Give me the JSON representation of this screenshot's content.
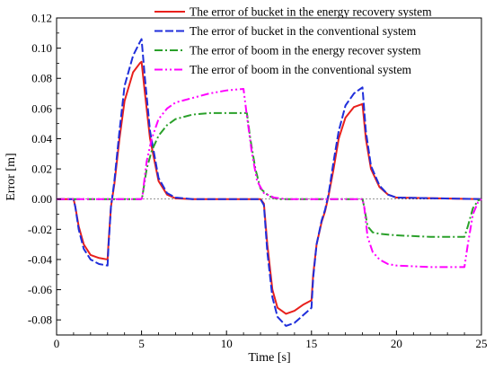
{
  "chart_data": {
    "type": "line",
    "xlabel": "Time [s]",
    "ylabel": "Error [m]",
    "xlim": [
      0,
      25
    ],
    "ylim": [
      -0.09,
      0.12
    ],
    "x_ticks": [
      "0",
      "5",
      "10",
      "15",
      "20",
      "25"
    ],
    "y_ticks": [
      "-0.08",
      "-0.06",
      "-0.04",
      "-0.02",
      "0.00",
      "0.02",
      "0.04",
      "0.06",
      "0.08",
      "0.10",
      "0.12"
    ],
    "grid": false,
    "legend_position": "top-right",
    "series": [
      {
        "name": "The error of bucket in the energy recovery system",
        "color": "#e8201c",
        "dash": "solid",
        "points": [
          [
            0,
            0
          ],
          [
            1.0,
            0
          ],
          [
            1.1,
            -0.005
          ],
          [
            1.3,
            -0.018
          ],
          [
            1.6,
            -0.03
          ],
          [
            2.0,
            -0.037
          ],
          [
            2.5,
            -0.039
          ],
          [
            3.0,
            -0.04
          ],
          [
            3.05,
            -0.03
          ],
          [
            3.2,
            -0.005
          ],
          [
            3.4,
            0.01
          ],
          [
            3.7,
            0.04
          ],
          [
            4.0,
            0.065
          ],
          [
            4.5,
            0.084
          ],
          [
            4.9,
            0.09
          ],
          [
            5.0,
            0.091
          ],
          [
            5.2,
            0.07
          ],
          [
            5.5,
            0.04
          ],
          [
            6.0,
            0.012
          ],
          [
            6.5,
            0.003
          ],
          [
            7.0,
            0.0005
          ],
          [
            8.0,
            0
          ],
          [
            12.0,
            0
          ],
          [
            12.2,
            -0.003
          ],
          [
            12.4,
            -0.03
          ],
          [
            12.7,
            -0.06
          ],
          [
            13.0,
            -0.072
          ],
          [
            13.5,
            -0.076
          ],
          [
            14.0,
            -0.074
          ],
          [
            14.5,
            -0.07
          ],
          [
            15.0,
            -0.067
          ],
          [
            15.1,
            -0.05
          ],
          [
            15.3,
            -0.03
          ],
          [
            15.6,
            -0.015
          ],
          [
            15.8,
            -0.008
          ],
          [
            16.0,
            0.002
          ],
          [
            16.3,
            0.02
          ],
          [
            16.6,
            0.04
          ],
          [
            17.0,
            0.054
          ],
          [
            17.5,
            0.061
          ],
          [
            18.0,
            0.063
          ],
          [
            18.2,
            0.04
          ],
          [
            18.5,
            0.02
          ],
          [
            19.0,
            0.008
          ],
          [
            19.5,
            0.003
          ],
          [
            20.0,
            0.001
          ],
          [
            25.0,
            0
          ]
        ]
      },
      {
        "name": "The error of bucket in the conventional system",
        "color": "#1f2edb",
        "dash": "dashed",
        "points": [
          [
            0,
            0
          ],
          [
            1.0,
            0
          ],
          [
            1.1,
            -0.005
          ],
          [
            1.3,
            -0.02
          ],
          [
            1.6,
            -0.033
          ],
          [
            2.0,
            -0.04
          ],
          [
            2.5,
            -0.043
          ],
          [
            3.0,
            -0.044
          ],
          [
            3.05,
            -0.032
          ],
          [
            3.2,
            -0.005
          ],
          [
            3.4,
            0.012
          ],
          [
            3.7,
            0.045
          ],
          [
            4.0,
            0.075
          ],
          [
            4.5,
            0.095
          ],
          [
            4.9,
            0.104
          ],
          [
            5.0,
            0.106
          ],
          [
            5.2,
            0.08
          ],
          [
            5.5,
            0.045
          ],
          [
            6.0,
            0.014
          ],
          [
            6.5,
            0.004
          ],
          [
            7.0,
            0.001
          ],
          [
            8.0,
            0
          ],
          [
            12.0,
            0
          ],
          [
            12.2,
            -0.004
          ],
          [
            12.4,
            -0.035
          ],
          [
            12.7,
            -0.065
          ],
          [
            13.0,
            -0.078
          ],
          [
            13.5,
            -0.084
          ],
          [
            14.0,
            -0.082
          ],
          [
            14.5,
            -0.077
          ],
          [
            15.0,
            -0.072
          ],
          [
            15.1,
            -0.052
          ],
          [
            15.3,
            -0.03
          ],
          [
            15.6,
            -0.014
          ],
          [
            15.8,
            -0.007
          ],
          [
            16.0,
            0.003
          ],
          [
            16.3,
            0.025
          ],
          [
            16.6,
            0.045
          ],
          [
            17.0,
            0.062
          ],
          [
            17.5,
            0.07
          ],
          [
            18.0,
            0.074
          ],
          [
            18.2,
            0.045
          ],
          [
            18.5,
            0.022
          ],
          [
            19.0,
            0.009
          ],
          [
            19.5,
            0.003
          ],
          [
            20.0,
            0.001
          ],
          [
            25.0,
            0
          ]
        ]
      },
      {
        "name": "The error of boom in the energy recover system",
        "color": "#2aa02a",
        "dash": "dashdot",
        "points": [
          [
            0,
            0
          ],
          [
            5.0,
            0
          ],
          [
            5.05,
            0.002
          ],
          [
            5.3,
            0.02
          ],
          [
            5.6,
            0.032
          ],
          [
            6.0,
            0.042
          ],
          [
            6.5,
            0.049
          ],
          [
            7.0,
            0.053
          ],
          [
            8.0,
            0.056
          ],
          [
            9.0,
            0.057
          ],
          [
            10.0,
            0.057
          ],
          [
            11.2,
            0.057
          ],
          [
            11.4,
            0.04
          ],
          [
            11.7,
            0.02
          ],
          [
            12.0,
            0.007
          ],
          [
            12.5,
            0.002
          ],
          [
            13.0,
            0
          ],
          [
            18.0,
            0
          ],
          [
            18.1,
            -0.005
          ],
          [
            18.3,
            -0.018
          ],
          [
            18.6,
            -0.022
          ],
          [
            19.0,
            -0.023
          ],
          [
            20.0,
            -0.024
          ],
          [
            22.0,
            -0.025
          ],
          [
            24.0,
            -0.025
          ],
          [
            24.2,
            -0.018
          ],
          [
            24.5,
            -0.006
          ],
          [
            24.8,
            -0.001
          ],
          [
            25.0,
            0
          ]
        ]
      },
      {
        "name": "The error of boom in the conventional system",
        "color": "#ff00ff",
        "dash": "dashdotdot",
        "points": [
          [
            0,
            0
          ],
          [
            5.0,
            0
          ],
          [
            5.05,
            0.002
          ],
          [
            5.3,
            0.025
          ],
          [
            5.6,
            0.04
          ],
          [
            6.0,
            0.053
          ],
          [
            6.5,
            0.06
          ],
          [
            7.0,
            0.064
          ],
          [
            8.0,
            0.067
          ],
          [
            9.0,
            0.07
          ],
          [
            10.0,
            0.072
          ],
          [
            11.0,
            0.073
          ],
          [
            11.2,
            0.055
          ],
          [
            11.5,
            0.03
          ],
          [
            11.8,
            0.012
          ],
          [
            12.2,
            0.004
          ],
          [
            12.8,
            0.001
          ],
          [
            13.5,
            0
          ],
          [
            18.0,
            0
          ],
          [
            18.1,
            -0.005
          ],
          [
            18.3,
            -0.025
          ],
          [
            18.6,
            -0.035
          ],
          [
            19.0,
            -0.04
          ],
          [
            19.5,
            -0.043
          ],
          [
            20.0,
            -0.044
          ],
          [
            22.0,
            -0.045
          ],
          [
            24.0,
            -0.045
          ],
          [
            24.2,
            -0.03
          ],
          [
            24.5,
            -0.01
          ],
          [
            24.8,
            -0.002
          ],
          [
            25.0,
            0
          ]
        ]
      }
    ]
  }
}
